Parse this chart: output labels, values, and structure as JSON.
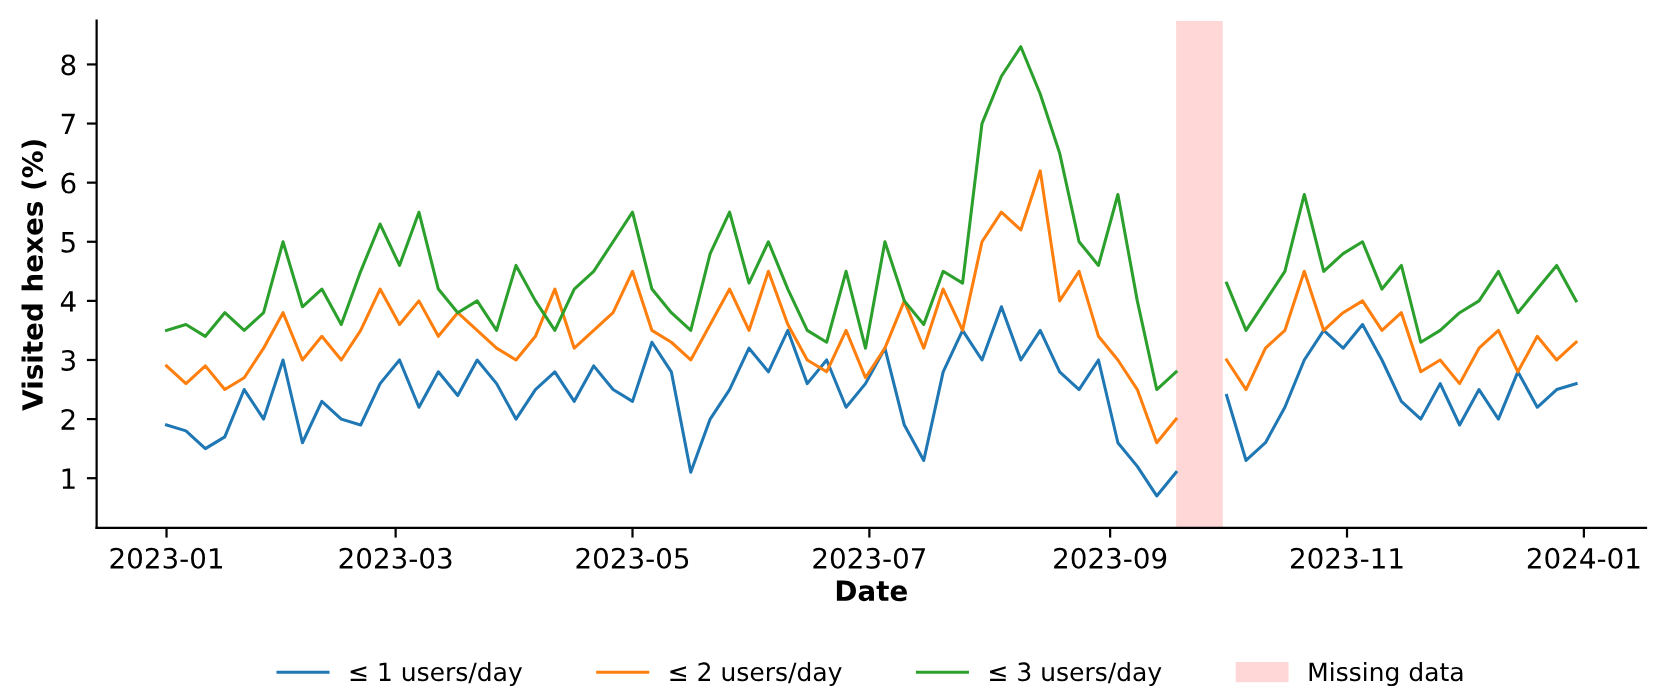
{
  "chart_data": {
    "type": "line",
    "xlabel": "Date",
    "ylabel": "Visited hexes (%)",
    "x": [
      "2023-01-01",
      "2023-01-06",
      "2023-01-11",
      "2023-01-16",
      "2023-01-21",
      "2023-01-26",
      "2023-01-31",
      "2023-02-05",
      "2023-02-10",
      "2023-02-15",
      "2023-02-20",
      "2023-02-25",
      "2023-03-02",
      "2023-03-07",
      "2023-03-12",
      "2023-03-17",
      "2023-03-22",
      "2023-03-27",
      "2023-04-01",
      "2023-04-06",
      "2023-04-11",
      "2023-04-16",
      "2023-04-21",
      "2023-04-26",
      "2023-05-01",
      "2023-05-06",
      "2023-05-11",
      "2023-05-16",
      "2023-05-21",
      "2023-05-26",
      "2023-05-31",
      "2023-06-05",
      "2023-06-10",
      "2023-06-15",
      "2023-06-20",
      "2023-06-25",
      "2023-06-30",
      "2023-07-05",
      "2023-07-10",
      "2023-07-15",
      "2023-07-20",
      "2023-07-25",
      "2023-07-30",
      "2023-08-04",
      "2023-08-09",
      "2023-08-14",
      "2023-08-19",
      "2023-08-24",
      "2023-08-29",
      "2023-09-03",
      "2023-09-08",
      "2023-09-13",
      "2023-09-18",
      "2023-09-24",
      "2023-10-01",
      "2023-10-06",
      "2023-10-11",
      "2023-10-16",
      "2023-10-21",
      "2023-10-26",
      "2023-10-31",
      "2023-11-05",
      "2023-11-10",
      "2023-11-15",
      "2023-11-20",
      "2023-11-25",
      "2023-11-30",
      "2023-12-05",
      "2023-12-10",
      "2023-12-15",
      "2023-12-20",
      "2023-12-25",
      "2023-12-30"
    ],
    "series": [
      {
        "name": "≤ 1 users/day",
        "color": "#1f77b4",
        "values": [
          1.9,
          1.8,
          1.5,
          1.7,
          2.5,
          2.0,
          3.0,
          1.6,
          2.3,
          2.0,
          1.9,
          2.6,
          3.0,
          2.2,
          2.8,
          2.4,
          3.0,
          2.6,
          2.0,
          2.5,
          2.8,
          2.3,
          2.9,
          2.5,
          2.3,
          3.3,
          2.8,
          1.1,
          2.0,
          2.5,
          3.2,
          2.8,
          3.5,
          2.6,
          3.0,
          2.2,
          2.6,
          3.2,
          1.9,
          1.3,
          2.8,
          3.5,
          3.0,
          3.9,
          3.0,
          3.5,
          2.8,
          2.5,
          3.0,
          1.6,
          1.2,
          0.7,
          1.1,
          null,
          2.4,
          1.3,
          1.6,
          2.2,
          3.0,
          3.5,
          3.2,
          3.6,
          3.0,
          2.3,
          2.0,
          2.6,
          1.9,
          2.5,
          2.0,
          2.8,
          2.2,
          2.5,
          2.6
        ]
      },
      {
        "name": "≤ 2 users/day",
        "color": "#ff7f0e",
        "values": [
          2.9,
          2.6,
          2.9,
          2.5,
          2.7,
          3.2,
          3.8,
          3.0,
          3.4,
          3.0,
          3.5,
          4.2,
          3.6,
          4.0,
          3.4,
          3.8,
          3.5,
          3.2,
          3.0,
          3.4,
          4.2,
          3.2,
          3.5,
          3.8,
          4.5,
          3.5,
          3.3,
          3.0,
          3.6,
          4.2,
          3.5,
          4.5,
          3.6,
          3.0,
          2.8,
          3.5,
          2.7,
          3.2,
          4.0,
          3.2,
          4.2,
          3.5,
          5.0,
          5.5,
          5.2,
          6.2,
          4.0,
          4.5,
          3.4,
          3.0,
          2.5,
          1.6,
          2.0,
          null,
          3.0,
          2.5,
          3.2,
          3.5,
          4.5,
          3.5,
          3.8,
          4.0,
          3.5,
          3.8,
          2.8,
          3.0,
          2.6,
          3.2,
          3.5,
          2.8,
          3.4,
          3.0,
          3.3
        ]
      },
      {
        "name": "≤ 3 users/day",
        "color": "#2ca02c",
        "values": [
          3.5,
          3.6,
          3.4,
          3.8,
          3.5,
          3.8,
          5.0,
          3.9,
          4.2,
          3.6,
          4.5,
          5.3,
          4.6,
          5.5,
          4.2,
          3.8,
          4.0,
          3.5,
          4.6,
          4.0,
          3.5,
          4.2,
          4.5,
          5.0,
          5.5,
          4.2,
          3.8,
          3.5,
          4.8,
          5.5,
          4.3,
          5.0,
          4.2,
          3.5,
          3.3,
          4.5,
          3.2,
          5.0,
          4.0,
          3.6,
          4.5,
          4.3,
          7.0,
          7.8,
          8.3,
          7.5,
          6.5,
          5.0,
          4.6,
          5.8,
          4.0,
          2.5,
          2.8,
          null,
          4.3,
          3.5,
          4.0,
          4.5,
          5.8,
          4.5,
          4.8,
          5.0,
          4.2,
          4.6,
          3.3,
          3.5,
          3.8,
          4.0,
          4.5,
          3.8,
          4.2,
          4.6,
          4.0
        ]
      }
    ],
    "bands": [
      {
        "axis": "x",
        "from": "2023-09-18",
        "to": "2023-09-30",
        "label": "Missing data",
        "color": "#ffd7d7"
      }
    ],
    "xlim": [
      "2022-12-14",
      "2024-01-17"
    ],
    "xticks": [
      {
        "value": "2023-01-01",
        "label": "2023-01"
      },
      {
        "value": "2023-03-01",
        "label": "2023-03"
      },
      {
        "value": "2023-05-01",
        "label": "2023-05"
      },
      {
        "value": "2023-07-01",
        "label": "2023-07"
      },
      {
        "value": "2023-09-01",
        "label": "2023-09"
      },
      {
        "value": "2023-11-01",
        "label": "2023-11"
      },
      {
        "value": "2024-01-01",
        "label": "2024-01"
      }
    ],
    "ylim": [
      0.16,
      8.74
    ],
    "yticks": [
      1,
      2,
      3,
      4,
      5,
      6,
      7,
      8
    ],
    "grid": false,
    "legend": "bottom",
    "marker": "none",
    "line_style": "solid"
  }
}
